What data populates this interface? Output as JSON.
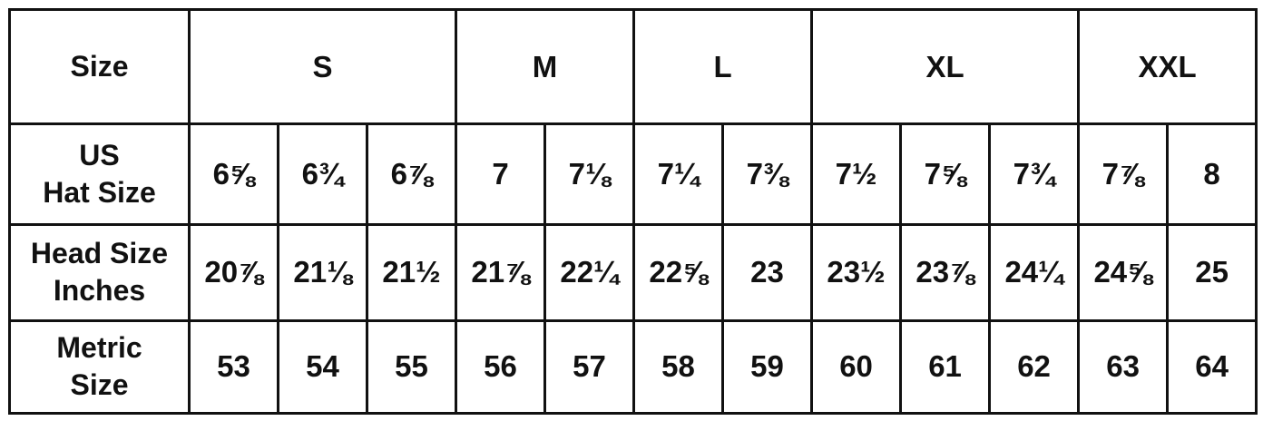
{
  "header": {
    "label": "Size",
    "sizes": [
      "S",
      "M",
      "L",
      "XL",
      "XXL"
    ]
  },
  "rows": [
    {
      "label_line1": "US",
      "label_line2": "Hat Size",
      "values": [
        "6⅝",
        "6¾",
        "6⅞",
        "7",
        "7⅛",
        "7¼",
        "7⅜",
        "7½",
        "7⅝",
        "7¾",
        "7⅞",
        "8"
      ]
    },
    {
      "label_line1": "Head Size",
      "label_line2": "Inches",
      "values": [
        "20⅞",
        "21⅛",
        "21½",
        "21⅞",
        "22¼",
        "22⅝",
        "23",
        "23½",
        "23⅞",
        "24¼",
        "24⅝",
        "25"
      ]
    },
    {
      "label_line1": "Metric",
      "label_line2": "Size",
      "values": [
        "53",
        "54",
        "55",
        "56",
        "57",
        "58",
        "59",
        "60",
        "61",
        "62",
        "63",
        "64"
      ]
    }
  ]
}
